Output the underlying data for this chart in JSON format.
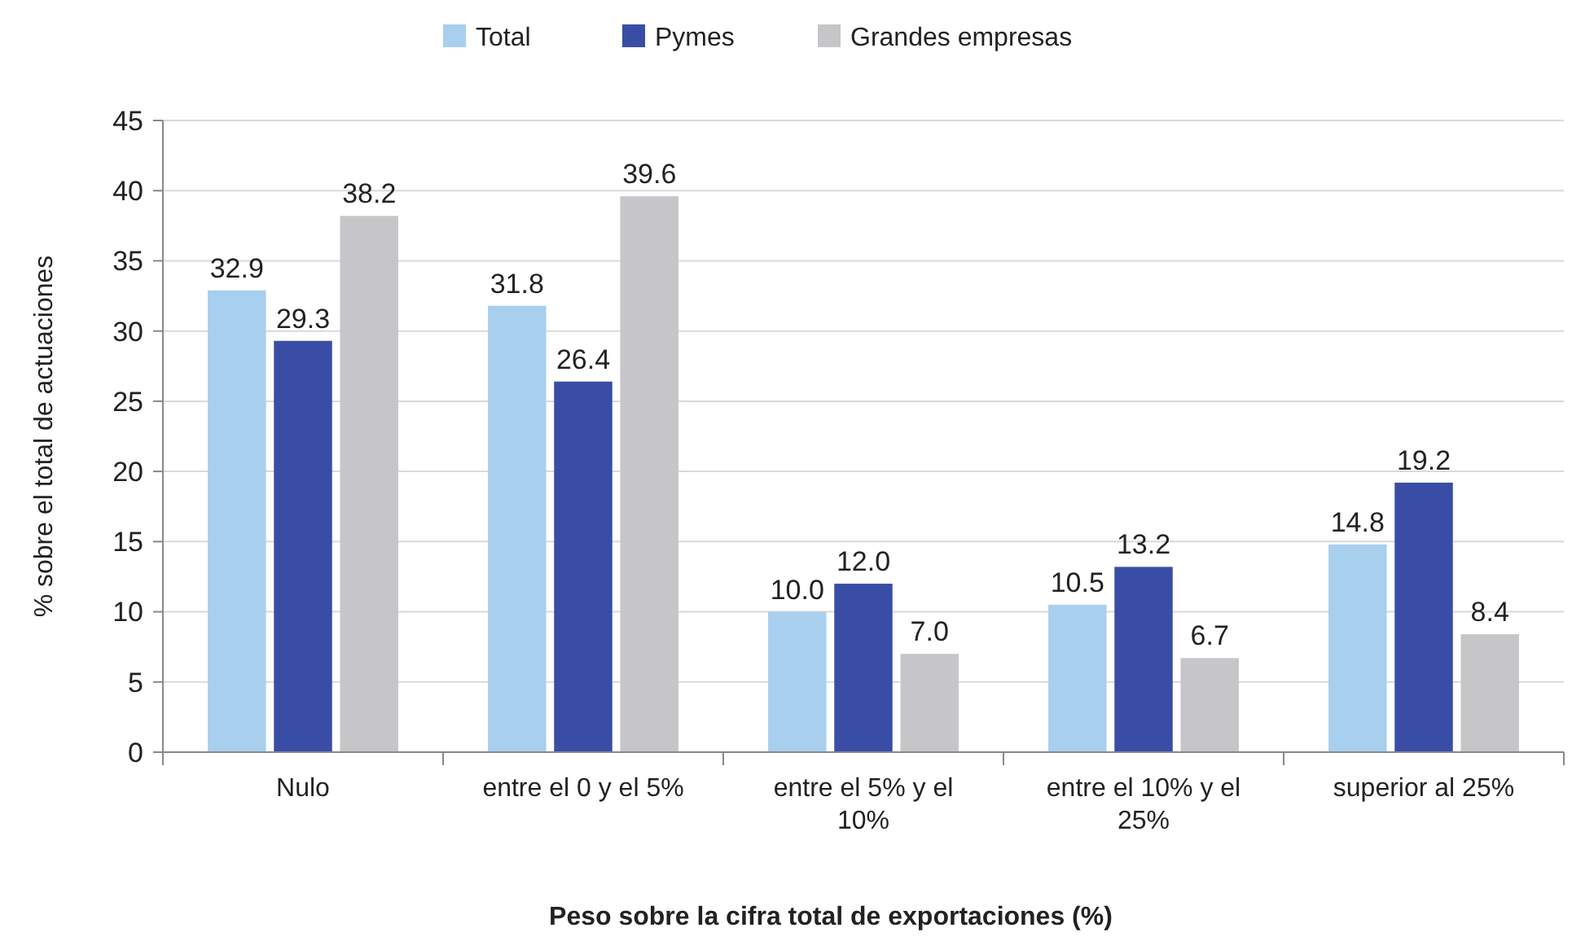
{
  "chart_data": {
    "type": "bar",
    "xlabel": "Peso sobre la cifra total de exportaciones (%)",
    "ylabel": "% sobre el total de actuaciones",
    "categories": [
      "Nulo",
      "entre el 0 y el 5%",
      "entre el 5% y el 10%",
      "entre el 10% y el 25%",
      "superior al 25%"
    ],
    "series": [
      {
        "name": "Total",
        "color": "#a8cfee",
        "values": [
          32.9,
          31.8,
          10.0,
          10.5,
          14.8
        ],
        "value_labels": [
          "32.9",
          "31.8",
          "10.0",
          "10.5",
          "14.8"
        ]
      },
      {
        "name": "Pymes",
        "color": "#3a4da6",
        "values": [
          29.3,
          26.4,
          12.0,
          13.2,
          19.2
        ],
        "value_labels": [
          "29.3",
          "26.4",
          "12.0",
          "13.2",
          "19.2"
        ]
      },
      {
        "name": "Grandes empresas",
        "color": "#c6c6c9",
        "values": [
          38.2,
          39.6,
          7.0,
          6.7,
          8.4
        ],
        "value_labels": [
          "38.2",
          "39.6",
          "7.0",
          "6.7",
          "8.4"
        ]
      }
    ],
    "ylim": [
      0,
      45
    ],
    "yticks": [
      0,
      5,
      10,
      15,
      20,
      25,
      30,
      35,
      40,
      45
    ],
    "grid": "y",
    "legend": "top"
  }
}
